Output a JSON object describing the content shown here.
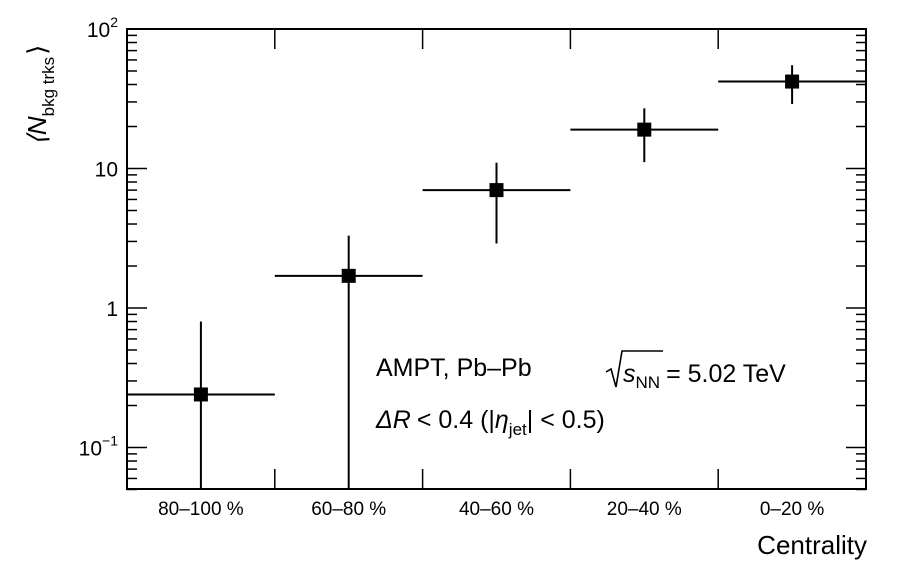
{
  "chart_data": {
    "type": "scatter",
    "xlabel": "Centrality",
    "ylabel": {
      "main": "⟨N",
      "sub": "bkg trks",
      "close": "⟩"
    },
    "yscale": "log",
    "ylim": [
      0.05,
      100
    ],
    "yticks": [
      {
        "value": 0.1,
        "base": "10",
        "exp": "−1"
      },
      {
        "value": 1,
        "base": "1",
        "exp": ""
      },
      {
        "value": 10,
        "base": "10",
        "exp": ""
      },
      {
        "value": 100,
        "base": "10",
        "exp": "2"
      }
    ],
    "categories": [
      "80–100 %",
      "60–80 %",
      "40–60 %",
      "20–40 %",
      "0–20 %"
    ],
    "series": [
      {
        "marker": "square",
        "color": "#000000",
        "values": [
          0.24,
          1.7,
          7.0,
          19.0,
          42.0
        ],
        "err_low": [
          0.19,
          1.65,
          4.1,
          7.9,
          13.0
        ],
        "err_high": [
          0.56,
          1.6,
          4.0,
          8.0,
          13.0
        ]
      }
    ],
    "annotations": {
      "line1_prefix": "AMPT, Pb–Pb",
      "line1_s": "s",
      "line1_nn": "NN",
      "line1_suffix": "= 5.02 TeV",
      "line2_dr": "ΔR",
      "line2_cut": "< 0.4 (|",
      "line2_eta": "η",
      "line2_jet": "jet",
      "line2_end": "| < 0.5)"
    },
    "grid": false,
    "legend": "none"
  }
}
